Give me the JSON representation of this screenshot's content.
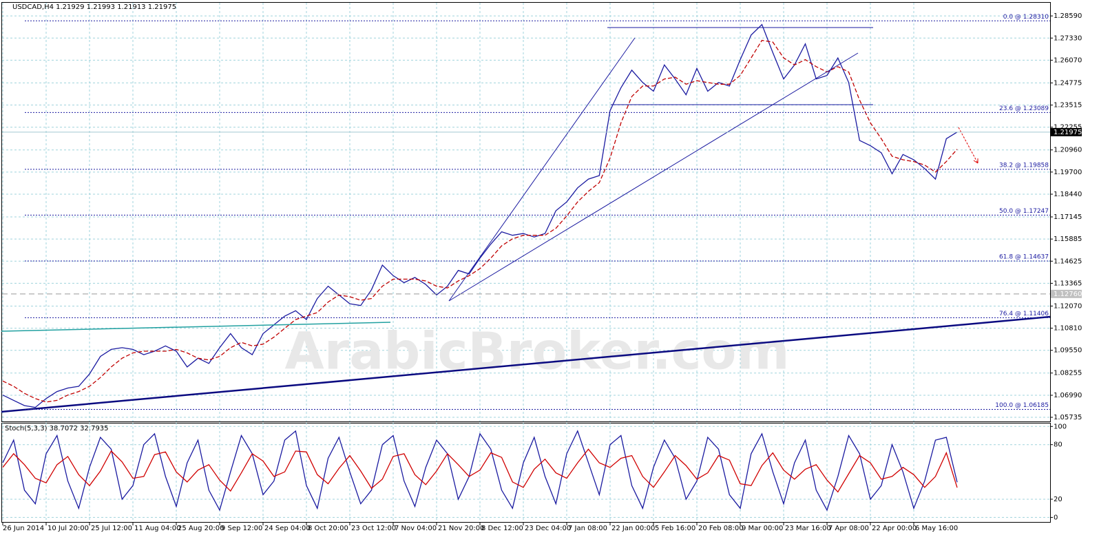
{
  "chart_data": [
    {
      "type": "line",
      "title": "USDCAD,H4  1.21929 1.21993 1.21913 1.21975",
      "watermark": "ArabicBroker.com",
      "categories": [
        "26 Jun 2014",
        null,
        null,
        null,
        "10 Jul 20:00",
        null,
        null,
        null,
        "25 Jul 12:00",
        null,
        null,
        null,
        "11 Aug 04:00",
        null,
        null,
        null,
        "25 Aug 20:00",
        null,
        null,
        null,
        "9 Sep 12:00",
        null,
        null,
        null,
        "24 Sep 04:00",
        null,
        null,
        null,
        "8 Oct 20:00",
        null,
        null,
        null,
        "23 Oct 12:00",
        null,
        null,
        null,
        "7 Nov 04:00",
        null,
        null,
        null,
        "21 Nov 20:00",
        null,
        null,
        null,
        "8 Dec 12:00",
        null,
        null,
        null,
        "23 Dec 04:00",
        null,
        null,
        null,
        "7 Jan 08:00",
        null,
        null,
        null,
        "22 Jan 00:00",
        null,
        null,
        null,
        "5 Feb 16:00",
        null,
        null,
        null,
        "20 Feb 08:00",
        null,
        null,
        null,
        "9 Mar 00:00",
        null,
        null,
        null,
        "23 Mar 16:00",
        null,
        null,
        null,
        "7 Apr 08:00",
        null,
        null,
        null,
        "22 Apr 00:00",
        null,
        null,
        null,
        "6 May 16:00",
        null,
        null,
        null,
        null
      ],
      "series": [
        {
          "color": "#1a1aa0",
          "values": [
            1.07,
            1.067,
            1.064,
            1.063,
            1.068,
            1.072,
            1.074,
            1.075,
            1.082,
            1.092,
            1.096,
            1.097,
            1.096,
            1.093,
            1.095,
            1.098,
            1.095,
            1.086,
            1.091,
            1.088,
            1.097,
            1.105,
            1.097,
            1.093,
            1.105,
            1.11,
            1.115,
            1.118,
            1.113,
            1.125,
            1.132,
            1.127,
            1.122,
            1.121,
            1.13,
            1.144,
            1.138,
            1.134,
            1.137,
            1.133,
            1.127,
            1.132,
            1.141,
            1.139,
            1.148,
            1.156,
            1.163,
            1.161,
            1.162,
            1.16,
            1.162,
            1.175,
            1.18,
            1.188,
            1.193,
            1.195,
            1.232,
            1.245,
            1.255,
            1.248,
            1.243,
            1.258,
            1.25,
            1.241,
            1.256,
            1.243,
            1.248,
            1.246,
            1.261,
            1.275,
            1.281,
            1.265,
            1.25,
            1.258,
            1.27,
            1.25,
            1.252,
            1.262,
            1.248,
            1.215,
            1.212,
            1.208,
            1.196,
            1.207,
            1.204,
            1.199,
            1.193,
            1.216,
            1.21975
          ]
        },
        {
          "color": "#c00000",
          "dashed": true,
          "values": [
            1.078,
            1.075,
            1.071,
            1.068,
            1.066,
            1.067,
            1.07,
            1.072,
            1.075,
            1.08,
            1.086,
            1.091,
            1.094,
            1.095,
            1.095,
            1.095,
            1.096,
            1.094,
            1.091,
            1.09,
            1.092,
            1.097,
            1.1,
            1.098,
            1.099,
            1.103,
            1.108,
            1.113,
            1.115,
            1.117,
            1.123,
            1.127,
            1.126,
            1.124,
            1.125,
            1.132,
            1.136,
            1.136,
            1.136,
            1.135,
            1.132,
            1.131,
            1.135,
            1.138,
            1.142,
            1.148,
            1.155,
            1.159,
            1.161,
            1.161,
            1.161,
            1.165,
            1.172,
            1.18,
            1.186,
            1.191,
            1.205,
            1.225,
            1.24,
            1.246,
            1.246,
            1.25,
            1.251,
            1.247,
            1.249,
            1.248,
            1.247,
            1.247,
            1.252,
            1.262,
            1.272,
            1.271,
            1.262,
            1.258,
            1.261,
            1.257,
            1.254,
            1.257,
            1.254,
            1.238,
            1.225,
            1.216,
            1.206,
            1.204,
            1.203,
            1.201,
            1.197,
            1.203,
            1.21
          ]
        }
      ],
      "ylim": [
        1.055,
        1.2934
      ],
      "yticks": [
        1.05735,
        {
          "value": 1.0699,
          "label": "1.06990"
        },
        1.08255,
        {
          "value": 1.0955,
          "label": "1.09550"
        },
        {
          "value": 1.1081,
          "label": "1.10810"
        },
        {
          "value": 1.1207,
          "label": "1.12070"
        },
        1.13365,
        1.14625,
        1.15885,
        1.17145,
        {
          "value": 1.1844,
          "label": "1.18440"
        },
        {
          "value": 1.197,
          "label": "1.19700"
        },
        {
          "value": 1.2096,
          "label": "1.20960"
        },
        1.22255,
        1.23515,
        1.24775,
        {
          "value": 1.2607,
          "label": "1.26070"
        },
        {
          "value": 1.2733,
          "label": "1.27330"
        },
        {
          "value": 1.2859,
          "label": "1.28590"
        }
      ],
      "grid": true,
      "fib_levels": [
        {
          "value": 1.2831,
          "label": "0.0 @ 1.28310"
        },
        {
          "value": 1.23089,
          "label": "23.6 @ 1.23089"
        },
        {
          "value": 1.19858,
          "label": "38.2 @ 1.19858"
        },
        {
          "value": 1.17247,
          "label": "50.0 @ 1.17247"
        },
        {
          "value": 1.14637,
          "label": "61.8 @ 1.14637"
        },
        {
          "value": 1.11406,
          "label": "76.4 @ 1.11406"
        },
        {
          "value": 1.06185,
          "label": "100.0 @ 1.06185"
        }
      ],
      "reference_line": {
        "value": 1.1276,
        "label": "1.12760"
      },
      "current_price": {
        "value": 1.21975,
        "label": "1.21975"
      }
    },
    {
      "type": "line",
      "title": "Stoch(5,3,3) 38.7072 32.7935",
      "series": [
        {
          "color": "#1a1aa0",
          "values": [
            60,
            85,
            30,
            15,
            70,
            90,
            40,
            10,
            55,
            88,
            75,
            20,
            35,
            80,
            92,
            45,
            12,
            60,
            85,
            30,
            8,
            50,
            90,
            70,
            25,
            40,
            85,
            95,
            35,
            10,
            65,
            88,
            50,
            15,
            30,
            80,
            90,
            40,
            12,
            55,
            85,
            70,
            20,
            45,
            92,
            75,
            30,
            10,
            60,
            88,
            45,
            15,
            70,
            95,
            60,
            25,
            80,
            90,
            35,
            10,
            55,
            85,
            65,
            20,
            40,
            88,
            75,
            25,
            10,
            70,
            92,
            50,
            15,
            60,
            85,
            30,
            8,
            45,
            90,
            70,
            20,
            35,
            80,
            50,
            10,
            40,
            85,
            88,
            38.7072
          ]
        },
        {
          "color": "#d00000",
          "values": [
            55,
            70,
            58,
            43,
            38,
            58,
            67,
            47,
            35,
            51,
            73,
            61,
            43,
            45,
            69,
            72,
            50,
            39,
            52,
            58,
            41,
            29,
            49,
            70,
            62,
            45,
            50,
            73,
            72,
            47,
            37,
            54,
            68,
            51,
            32,
            42,
            67,
            70,
            47,
            36,
            51,
            70,
            58,
            45,
            52,
            71,
            66,
            39,
            33,
            53,
            64,
            49,
            43,
            60,
            75,
            60,
            55,
            65,
            68,
            45,
            33,
            50,
            68,
            57,
            42,
            49,
            68,
            63,
            37,
            35,
            57,
            71,
            52,
            42,
            53,
            58,
            41,
            28,
            48,
            68,
            60,
            42,
            45,
            55,
            47,
            33,
            45,
            71,
            32.7935
          ]
        }
      ],
      "ylim": [
        -5,
        104
      ],
      "yticks": [
        100,
        80,
        20,
        0
      ],
      "grid": true
    }
  ]
}
